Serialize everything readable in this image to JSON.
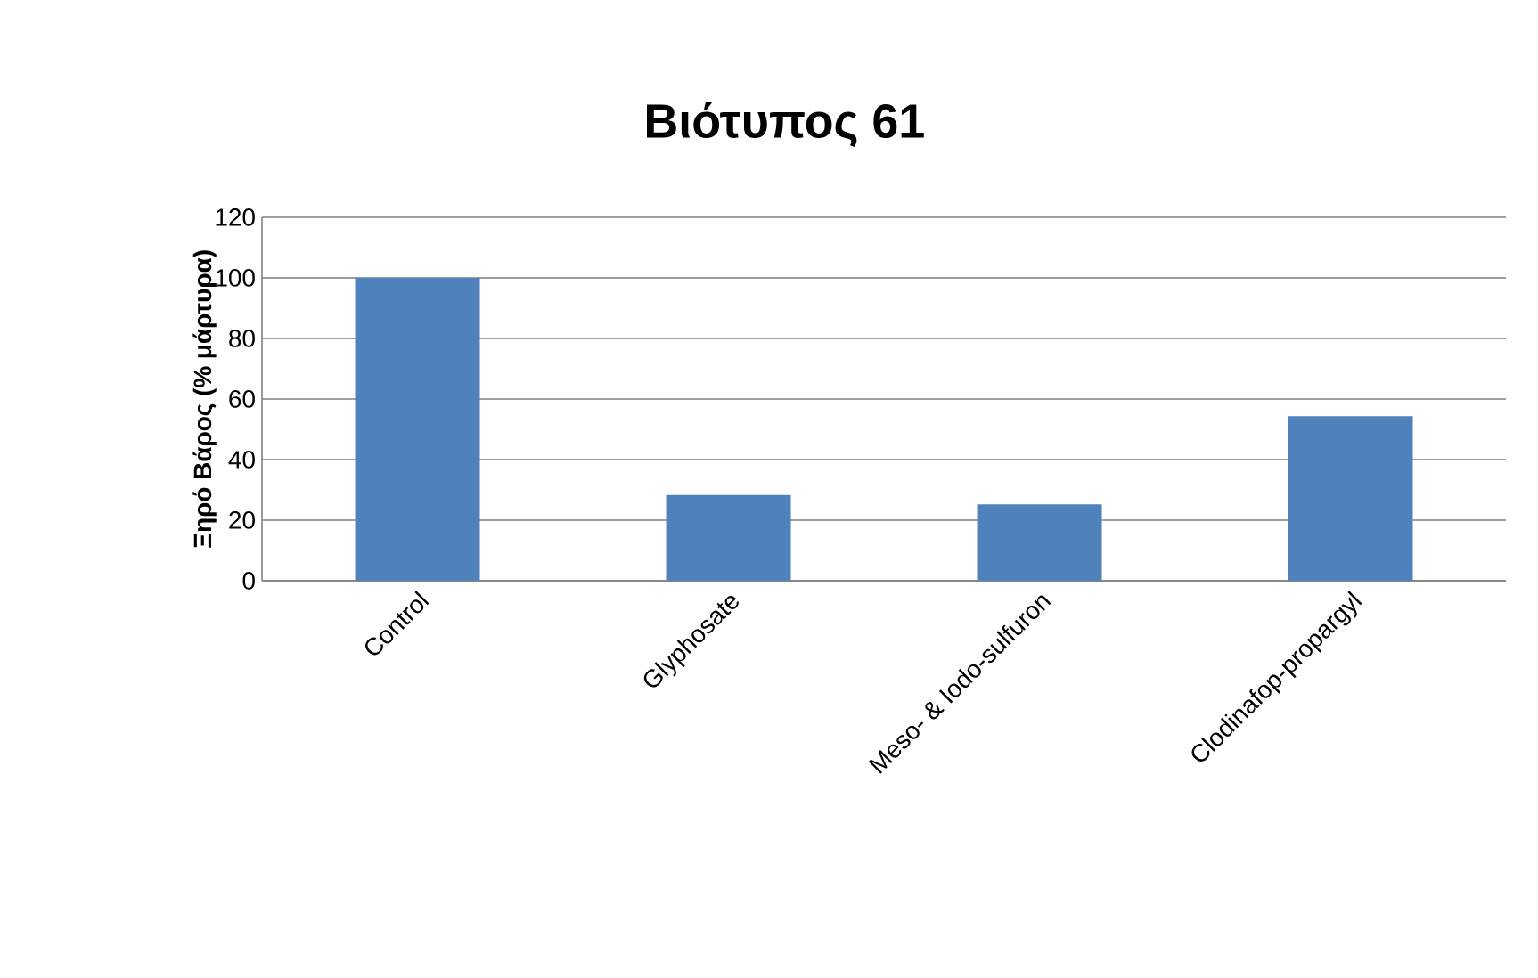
{
  "chart_data": {
    "type": "bar",
    "title": "Βιότυπος 61",
    "ylabel": "Ξηρό Βάρος (% μάρτυρα)",
    "categories": [
      "Control",
      "Glyphosate",
      "Meso- & Iodo-sulfuron",
      "Clodinafop-propargyl"
    ],
    "values": [
      100,
      28.3,
      25.2,
      54.3
    ],
    "color": "#4f81bd",
    "ylim": [
      0,
      120
    ],
    "yticks": [
      0,
      20,
      40,
      60,
      80,
      100,
      120
    ],
    "grid": "y"
  }
}
